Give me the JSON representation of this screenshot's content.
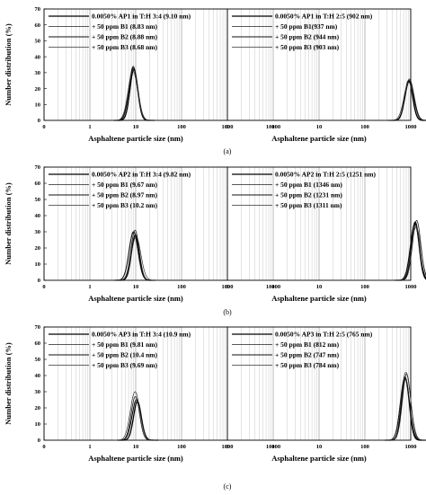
{
  "chart_data": [
    {
      "type": "line",
      "label": "(a)",
      "ylabel": "Number distribution (%)",
      "ylim": [
        0,
        70
      ],
      "yticks": [
        0,
        10,
        20,
        30,
        40,
        50,
        60,
        70
      ],
      "xscale": "log",
      "panels": [
        {
          "xlabel": "Asphaltene particle size (nm)",
          "xlim": [
            0,
            10000
          ],
          "xticks": [
            "0",
            "1",
            "10",
            "100",
            "1000",
            "10000"
          ],
          "series": [
            {
              "name": "0.0050% AP1 in T:H 3:4 (9.10 nm)",
              "mean": 9.1,
              "peak": 32
            },
            {
              "name": "+ 50 ppm B1 (8.83 nm)",
              "mean": 8.83,
              "peak": 34
            },
            {
              "name": "+ 50 ppm B2 (8.88 nm)",
              "mean": 8.88,
              "peak": 33
            },
            {
              "name": "+ 50 ppm B3 (8.68 nm)",
              "mean": 8.68,
              "peak": 31
            }
          ]
        },
        {
          "xlabel": "Asphaltene particle size (nm)",
          "xlim": [
            0,
            10000
          ],
          "xticks": [
            "0",
            "1",
            "10",
            "100",
            "1000",
            "10000"
          ],
          "series": [
            {
              "name": "0.0050% AP1 in T:H 2:5 (902 nm)",
              "mean": 902,
              "peak": 25
            },
            {
              "name": "+ 50 ppm B1(937 nm)",
              "mean": 937,
              "peak": 26
            },
            {
              "name": "+ 50 ppm B2 (944 nm)",
              "mean": 944,
              "peak": 25
            },
            {
              "name": "+ 50 ppm B3 (903 nm)",
              "mean": 903,
              "peak": 24
            }
          ]
        }
      ]
    },
    {
      "type": "line",
      "label": "(b)",
      "ylabel": "Number distribution (%)",
      "ylim": [
        0,
        70
      ],
      "yticks": [
        0,
        10,
        20,
        30,
        40,
        50,
        60,
        70
      ],
      "xscale": "log",
      "panels": [
        {
          "xlabel": "Asphaltene particle size (nm)",
          "xlim": [
            0,
            10000
          ],
          "xticks": [
            "0",
            "1",
            "10",
            "100",
            "1000",
            "10000"
          ],
          "series": [
            {
              "name": "0.0050% AP2 in T:H 3:4 (9.82 nm)",
              "mean": 9.82,
              "peak": 28
            },
            {
              "name": "+ 50 ppm B1 (9.67 nm)",
              "mean": 9.67,
              "peak": 31
            },
            {
              "name": "+ 50 ppm B2 (8.97 nm)",
              "mean": 8.97,
              "peak": 30
            },
            {
              "name": "+ 50 ppm B3 (10.2 nm)",
              "mean": 10.2,
              "peak": 27
            }
          ]
        },
        {
          "xlabel": "Asphaltene particle size (nm)",
          "xlim": [
            0,
            10000
          ],
          "xticks": [
            "0",
            "1",
            "10",
            "100",
            "1000",
            "10000"
          ],
          "series": [
            {
              "name": "0.0050% AP2 in T:H 2:5 (1251 nm)",
              "mean": 1251,
              "peak": 36
            },
            {
              "name": "+ 50 ppm B1 (1346 nm)",
              "mean": 1346,
              "peak": 37
            },
            {
              "name": "+ 50 ppm B2 (1231 nm)",
              "mean": 1231,
              "peak": 35
            },
            {
              "name": "+ 50 ppm B3 (1311 nm)",
              "mean": 1311,
              "peak": 33
            }
          ]
        }
      ]
    },
    {
      "type": "line",
      "label": "(c)",
      "ylabel": "Number distribution (%)",
      "ylim": [
        0,
        70
      ],
      "yticks": [
        0,
        10,
        20,
        30,
        40,
        50,
        60,
        70
      ],
      "xscale": "log",
      "panels": [
        {
          "xlabel": "Asphaltene particle size (nm)",
          "xlim": [
            0,
            10000
          ],
          "xticks": [
            "0",
            "1",
            "10",
            "100",
            "1000",
            "10000"
          ],
          "series": [
            {
              "name": "0.0050% AP3 in T:H 3:4 (10.9 nm)",
              "mean": 10.9,
              "peak": 24
            },
            {
              "name": "+ 50 ppm B1 (9.81 nm)",
              "mean": 9.81,
              "peak": 27
            },
            {
              "name": "+ 50 ppm B2 (10.4 nm)",
              "mean": 10.4,
              "peak": 25
            },
            {
              "name": "+ 50 ppm B3 (9.69 nm)",
              "mean": 9.69,
              "peak": 30
            }
          ]
        },
        {
          "xlabel": "Asphaltene particle size (nm)",
          "xlim": [
            0,
            10000
          ],
          "xticks": [
            "0",
            "1",
            "10",
            "100",
            "1000",
            "10000"
          ],
          "series": [
            {
              "name": "0.0050% AP3 in T:H 2:5 (765 nm)",
              "mean": 765,
              "peak": 38
            },
            {
              "name": "+ 50 ppm B1 (812 nm)",
              "mean": 812,
              "peak": 41
            },
            {
              "name": "+ 50 ppm B2 (747 nm)",
              "mean": 747,
              "peak": 39
            },
            {
              "name": "+ 50 ppm B3 (784 nm)",
              "mean": 784,
              "peak": 42
            }
          ]
        }
      ]
    }
  ]
}
